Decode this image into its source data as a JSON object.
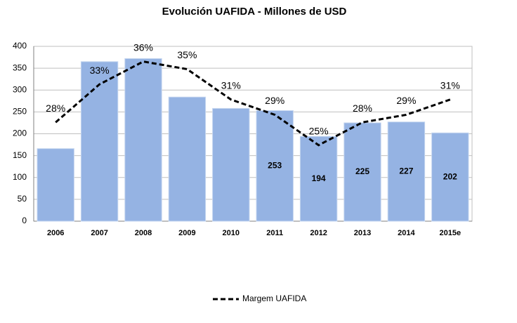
{
  "chart_data": {
    "type": "bar",
    "title": "Evolución UAFIDA - Millones de USD",
    "categories": [
      "2006",
      "2007",
      "2008",
      "2009",
      "2010",
      "2011",
      "2012",
      "2013",
      "2014",
      "2015e"
    ],
    "series": [
      {
        "type": "bar",
        "color": "#95b3e3",
        "values": [
          166,
          365,
          372,
          284,
          258,
          253,
          194,
          225,
          227,
          202
        ],
        "value_labels": [
          null,
          null,
          null,
          null,
          null,
          "253",
          "194",
          "225",
          "227",
          "202"
        ]
      },
      {
        "type": "line",
        "name": "Margem UAFIDA",
        "color": "#000000",
        "axis": "y2",
        "values": [
          28,
          33,
          36,
          35,
          31,
          29,
          25,
          28,
          29,
          31
        ],
        "value_labels": [
          "28%",
          "33%",
          "36%",
          "35%",
          "31%",
          "29%",
          "25%",
          "28%",
          "29%",
          "31%"
        ]
      }
    ],
    "ylim": [
      0,
      400
    ],
    "yticks": [
      0,
      50,
      100,
      150,
      200,
      250,
      300,
      350,
      400
    ],
    "y2lim": [
      15,
      38
    ],
    "grid": true,
    "legend": "bottom"
  }
}
